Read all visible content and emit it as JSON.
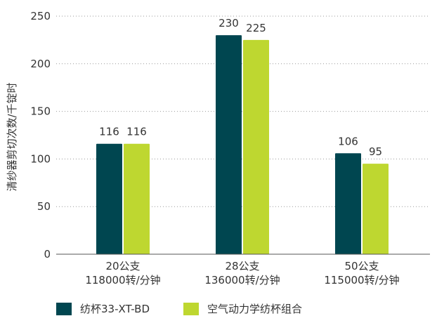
{
  "chart_data": {
    "type": "bar",
    "ylabel": "清纱器剪切次数/千锭时",
    "ylim": [
      0,
      250
    ],
    "yticks": [
      0,
      50,
      100,
      150,
      200,
      250
    ],
    "grid": "horizontal-dotted",
    "legend_position": "bottom",
    "categories": [
      {
        "line1": "20公支",
        "line2": "118000转/分钟"
      },
      {
        "line1": "28公支",
        "line2": "136000转/分钟"
      },
      {
        "line1": "50公支",
        "line2": "115000转/分钟"
      }
    ],
    "series": [
      {
        "name": "纺杯33-XT-BD",
        "color": "#004650",
        "values": [
          116,
          230,
          106
        ]
      },
      {
        "name": "空气动力学纺杯组合",
        "color": "#bed730",
        "values": [
          116,
          225,
          95
        ]
      }
    ]
  }
}
